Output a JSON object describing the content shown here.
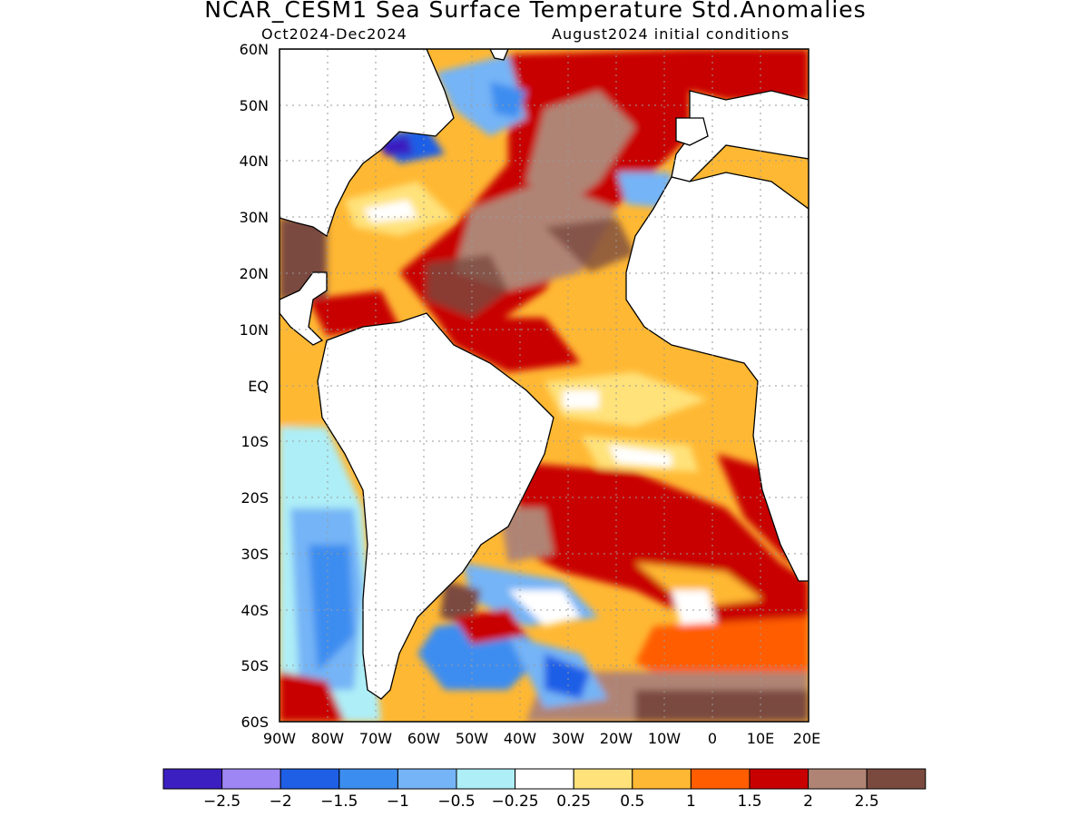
{
  "header": {
    "title": "NCAR_CESM1 Sea Surface Temperature Std.Anomalies",
    "period": "Oct2024-Dec2024",
    "init": "August2024 initial conditions"
  },
  "map": {
    "lat_ticks": [
      "60N",
      "50N",
      "40N",
      "30N",
      "20N",
      "10N",
      "EQ",
      "10S",
      "20S",
      "30S",
      "40S",
      "50S",
      "60S"
    ],
    "lon_ticks": [
      "90W",
      "80W",
      "70W",
      "60W",
      "50W",
      "40W",
      "30W",
      "20W",
      "10W",
      "0",
      "10E",
      "20E"
    ],
    "lat_range": [
      -60,
      60
    ],
    "lon_range": [
      -90,
      20
    ],
    "grid": true
  },
  "colorbar": {
    "colors": [
      "#3b1fc0",
      "#9e86f5",
      "#1f5fe6",
      "#3c8df0",
      "#75b4f6",
      "#aeeef7",
      "#ffffff",
      "#ffe27a",
      "#ffb833",
      "#ff5d00",
      "#c80000",
      "#b08474",
      "#7a4a3f"
    ],
    "labels": [
      "-2.5",
      "-2",
      "-1.5",
      "-1",
      "-0.5",
      "-0.25",
      "0.25",
      "0.5",
      "1",
      "1.5",
      "2",
      "2.5"
    ]
  },
  "palette": {
    "ocean_base": "#ffb833",
    "land": "#ffffff",
    "coast": "#000000"
  }
}
